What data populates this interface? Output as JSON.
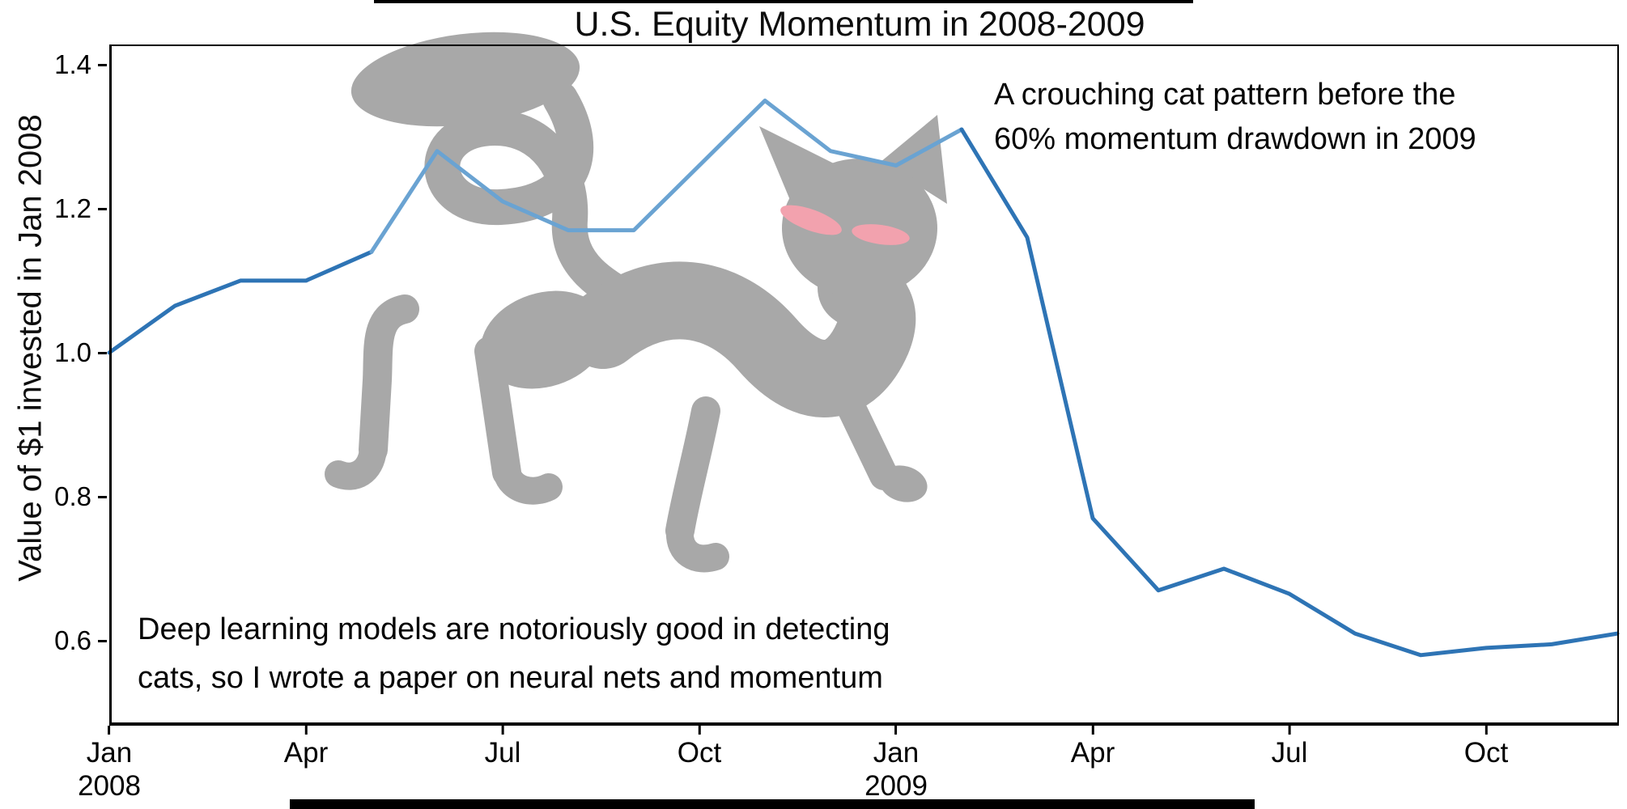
{
  "chart_data": {
    "type": "line",
    "title": "U.S. Equity Momentum in 2008-2009",
    "ylabel": "Value of $1 invested in Jan 2008",
    "xlabel": "",
    "x_axis": {
      "start": "Jan 2008",
      "end": "Dec 2009",
      "frequency": "monthly"
    },
    "values_monthly": [
      1.0,
      1.065,
      1.1,
      1.1,
      1.14,
      1.28,
      1.21,
      1.17,
      1.17,
      1.26,
      1.35,
      1.28,
      1.26,
      1.31,
      1.16,
      0.77,
      0.67,
      0.7,
      0.665,
      0.61,
      0.58,
      0.59,
      0.595,
      0.61
    ],
    "ylim": [
      0.482,
      1.428
    ],
    "y_ticks": [
      "1.4",
      "1.2",
      "1.0",
      "0.8",
      "0.6"
    ],
    "x_tick_labels": [
      {
        "line1": "Jan",
        "line2": "2008"
      },
      {
        "line1": "Apr",
        "line2": ""
      },
      {
        "line1": "Jul",
        "line2": ""
      },
      {
        "line1": "Oct",
        "line2": ""
      },
      {
        "line1": "Jan",
        "line2": "2009"
      },
      {
        "line1": "Apr",
        "line2": ""
      },
      {
        "line1": "Jul",
        "line2": ""
      },
      {
        "line1": "Oct",
        "line2": ""
      }
    ],
    "line_color": "#2e74b5",
    "highlight": {
      "from_index": 4,
      "to_index": 13,
      "color": "#6aa3d2"
    },
    "grid": false,
    "legend": "none",
    "annotations": [
      {
        "lines": [
          "A crouching cat pattern before the",
          "60% momentum drawdown in 2009"
        ]
      },
      {
        "lines": [
          "Deep learning models are notoriously good in detecting",
          "cats, so I wrote a paper on neural nets and momentum"
        ]
      }
    ]
  },
  "decor": {
    "cat_color": "#a8a8a8",
    "cat_eye_color": "#f2a2ae",
    "frame_color": "#000000"
  }
}
